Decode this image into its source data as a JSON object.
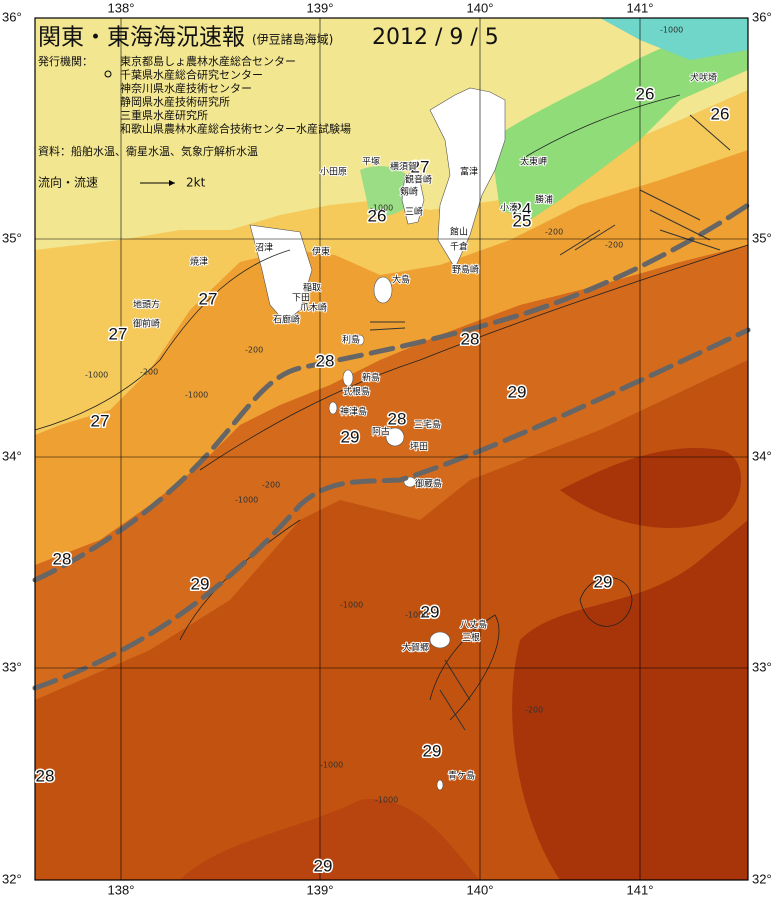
{
  "header": {
    "title": "関東・東海海況速報",
    "subtitle": "(伊豆諸島海域)",
    "date": "2012 / 9 / 5"
  },
  "info": {
    "issuer_label": "発行機関：",
    "issuers": [
      "東京都島しょ農林水産総合センター",
      "千葉県水産総合研究センター",
      "神奈川県水産技術センター",
      "静岡県水産技術研究所",
      "三重県水産研究所",
      "和歌山県農林水産総合技術センター水産試験場"
    ],
    "sources": "資料：船舶水温、衛星水温、気象庁解析水温"
  },
  "legend": {
    "label": "流向・流速",
    "speed": "2kt"
  },
  "axes": {
    "lon": [
      "138°",
      "139°",
      "140°",
      "141°"
    ],
    "lat": [
      "36°",
      "35°",
      "34°",
      "33°",
      "32°"
    ]
  },
  "isotherm_labels": [
    "26",
    "26",
    "27",
    "26",
    "24",
    "25",
    "27",
    "27",
    "28",
    "28",
    "29",
    "27",
    "28",
    "29",
    "28",
    "29",
    "29",
    "29",
    "29",
    "28",
    "29"
  ],
  "depth_labels": [
    "-1000",
    "-200",
    "-200",
    "-1000",
    "-200",
    "-1000",
    "-200",
    "-1000",
    "-200",
    "-1000",
    "-1000",
    "-1000",
    "-1000",
    "-200",
    "-1000"
  ],
  "places": [
    "犬吠埼",
    "太東岬",
    "勝浦",
    "小湊",
    "館山",
    "千倉",
    "野島崎",
    "富津",
    "横須賀",
    "観音崎",
    "剱崎",
    "三崎",
    "平塚",
    "小田原",
    "伊東",
    "沼津",
    "焼津",
    "稲取",
    "下田",
    "爪木崎",
    "石廊崎",
    "地頭方",
    "御前崎",
    "大島",
    "利島",
    "新島",
    "式根島",
    "神津島",
    "三宅島",
    "阿古",
    "坪田",
    "御蔵島",
    "八丈島",
    "三根",
    "大賀郷",
    "青ケ島"
  ]
}
